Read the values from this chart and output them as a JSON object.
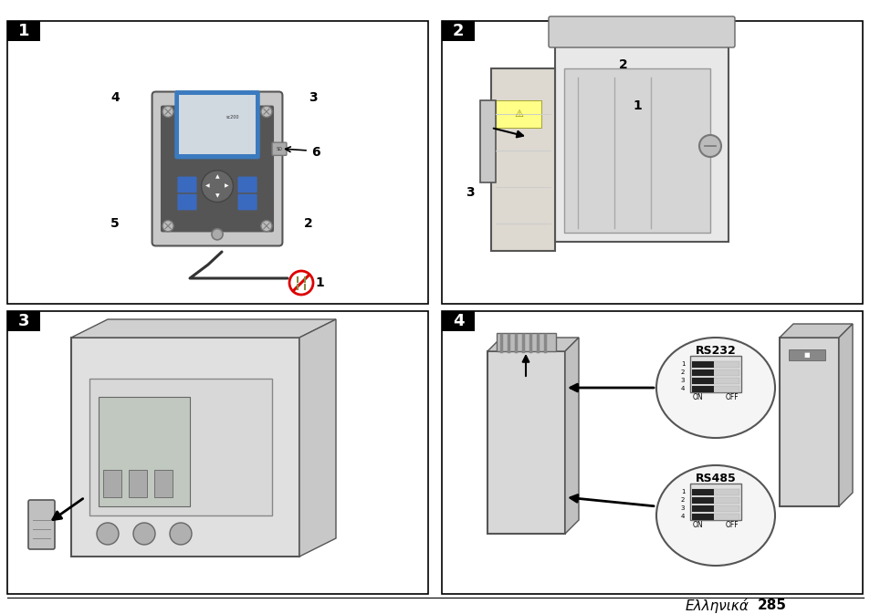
{
  "page_bg": "#ffffff",
  "border_color": "#000000",
  "panel_label_bg": "#000000",
  "panel_label_fg": "#ffffff",
  "panel_labels": [
    "1",
    "2",
    "3",
    "4"
  ],
  "footer_text_italic": "Ελληνικά",
  "footer_page": "285",
  "device_screen_border": "#3a7abf",
  "device_screen_bg": "#d0d8e0",
  "device_button_color": "#3a6abf",
  "font_size_callout": 10,
  "font_size_footer": 11
}
